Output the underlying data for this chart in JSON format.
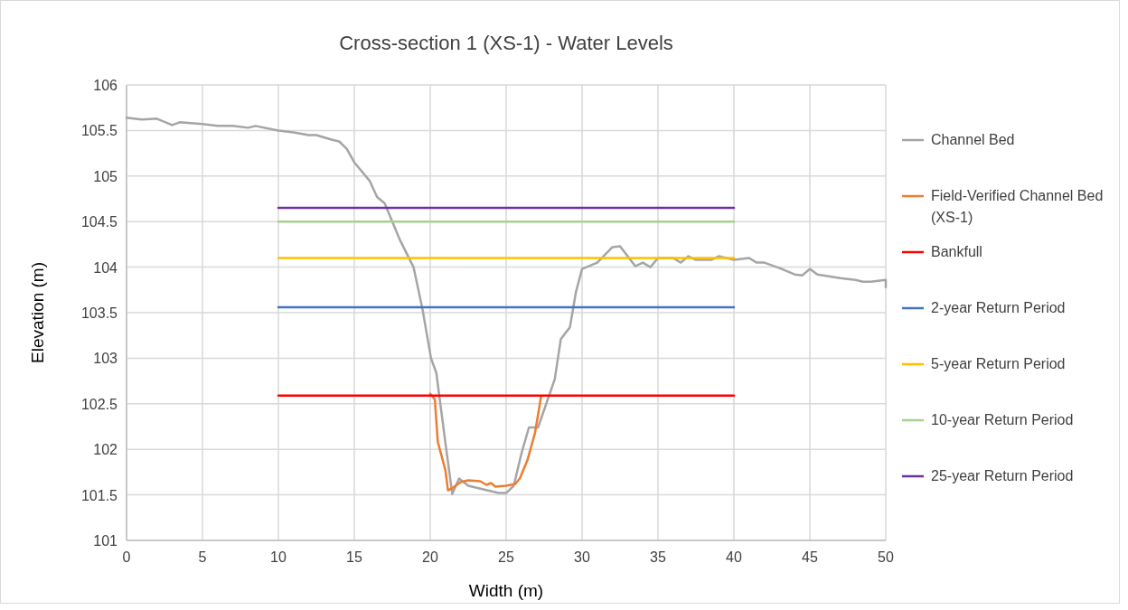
{
  "chart_data": {
    "type": "line",
    "title": "Cross-section 1 (XS-1) - Water Levels",
    "xlabel": "Width (m)",
    "ylabel": "Elevation (m)",
    "xlim": [
      0,
      50
    ],
    "xticks": [
      0,
      5,
      10,
      15,
      20,
      25,
      30,
      35,
      40,
      45,
      50
    ],
    "ylim": [
      101,
      106
    ],
    "yticks": [
      101,
      101.5,
      102,
      102.5,
      103,
      103.5,
      104,
      104.5,
      105,
      105.5,
      106
    ],
    "grid": true,
    "legend": "right",
    "marker": "none",
    "line_style": "solid",
    "series": [
      {
        "name": "Channel Bed",
        "color": "#a5a5a5",
        "x": [
          0,
          1,
          2,
          3,
          3.5,
          5,
          6,
          7,
          8,
          8.5,
          10,
          11,
          12,
          12.5,
          13.5,
          14,
          14.5,
          15,
          16,
          16.5,
          17,
          18,
          18.9,
          19.5,
          20.05,
          20.4,
          21,
          21.45,
          21.9,
          22.5,
          24,
          24.5,
          25,
          25.5,
          26,
          26.5,
          27.1,
          28.2,
          28.6,
          29.2,
          29.6,
          30,
          31,
          32,
          32.5,
          33.5,
          34,
          34.5,
          35,
          36,
          36.5,
          37,
          37.5,
          38.5,
          39,
          40,
          41,
          41.5,
          42,
          43,
          44,
          44.5,
          45,
          45.5,
          47,
          48,
          48.5,
          49,
          50,
          50
        ],
        "values": [
          105.64,
          105.62,
          105.63,
          105.56,
          105.59,
          105.57,
          105.55,
          105.55,
          105.53,
          105.55,
          105.5,
          105.48,
          105.45,
          105.45,
          105.4,
          105.38,
          105.3,
          105.15,
          104.95,
          104.77,
          104.7,
          104.3,
          104.0,
          103.53,
          103.0,
          102.84,
          102.07,
          101.51,
          101.68,
          101.6,
          101.54,
          101.52,
          101.52,
          101.6,
          101.95,
          102.24,
          102.24,
          102.77,
          103.21,
          103.34,
          103.73,
          103.98,
          104.05,
          104.22,
          104.23,
          104.01,
          104.05,
          104.0,
          104.1,
          104.1,
          104.05,
          104.12,
          104.08,
          104.08,
          104.12,
          104.08,
          104.1,
          104.05,
          104.05,
          103.99,
          103.92,
          103.91,
          103.98,
          103.92,
          103.88,
          103.86,
          103.84,
          103.84,
          103.86,
          103.78
        ]
      },
      {
        "name": "Field-Verified Channel Bed (XS-1)",
        "color": "#ed7d31",
        "x": [
          20.0,
          20.3,
          20.5,
          21.0,
          21.17,
          21.5,
          22.0,
          22.5,
          23.3,
          23.7,
          24.0,
          24.3,
          25.0,
          25.6,
          25.9,
          26.4,
          26.9,
          27.3
        ],
        "values": [
          102.61,
          102.55,
          102.08,
          101.77,
          101.55,
          101.58,
          101.64,
          101.66,
          101.65,
          101.61,
          101.63,
          101.59,
          101.6,
          101.62,
          101.68,
          101.88,
          102.18,
          102.58
        ]
      },
      {
        "name": "Bankfull",
        "color": "#ff0000",
        "x": [
          10,
          40
        ],
        "values": [
          102.59,
          102.59
        ]
      },
      {
        "name": "2-year Return Period",
        "color": "#4472c4",
        "x": [
          10,
          40
        ],
        "values": [
          103.56,
          103.56
        ]
      },
      {
        "name": "5-year Return Period",
        "color": "#ffc000",
        "x": [
          10,
          40
        ],
        "values": [
          104.1,
          104.1
        ]
      },
      {
        "name": "10-year Return Period",
        "color": "#a9d18e",
        "x": [
          10,
          40
        ],
        "values": [
          104.5,
          104.5
        ]
      },
      {
        "name": "25-year Return Period",
        "color": "#7030a0",
        "x": [
          10,
          40
        ],
        "values": [
          104.65,
          104.65
        ]
      }
    ]
  }
}
